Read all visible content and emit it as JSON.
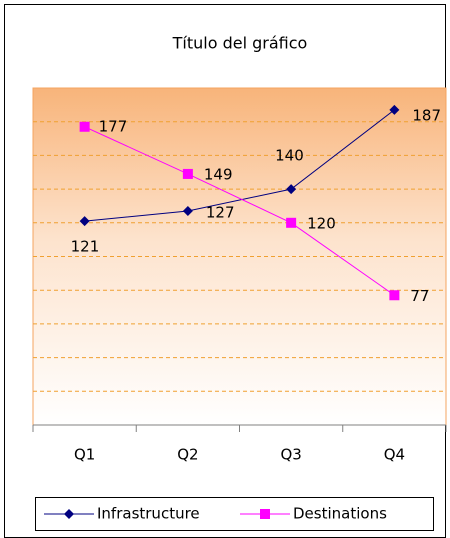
{
  "chart_data": {
    "type": "line",
    "title": "Título del gráfico",
    "categories": [
      "Q1",
      "Q2",
      "Q3",
      "Q4"
    ],
    "series": [
      {
        "name": "Infrastructure",
        "color": "#000080",
        "marker": "diamond",
        "values": [
          121,
          127,
          140,
          187
        ]
      },
      {
        "name": "Destinations",
        "color": "#ff00ff",
        "marker": "square",
        "values": [
          177,
          149,
          120,
          77
        ]
      }
    ],
    "ylim": [
      0,
      200
    ],
    "yticks": [
      0,
      20,
      40,
      60,
      80,
      100,
      120,
      140,
      160,
      180,
      200
    ],
    "grid": true,
    "legend": "bottom"
  }
}
